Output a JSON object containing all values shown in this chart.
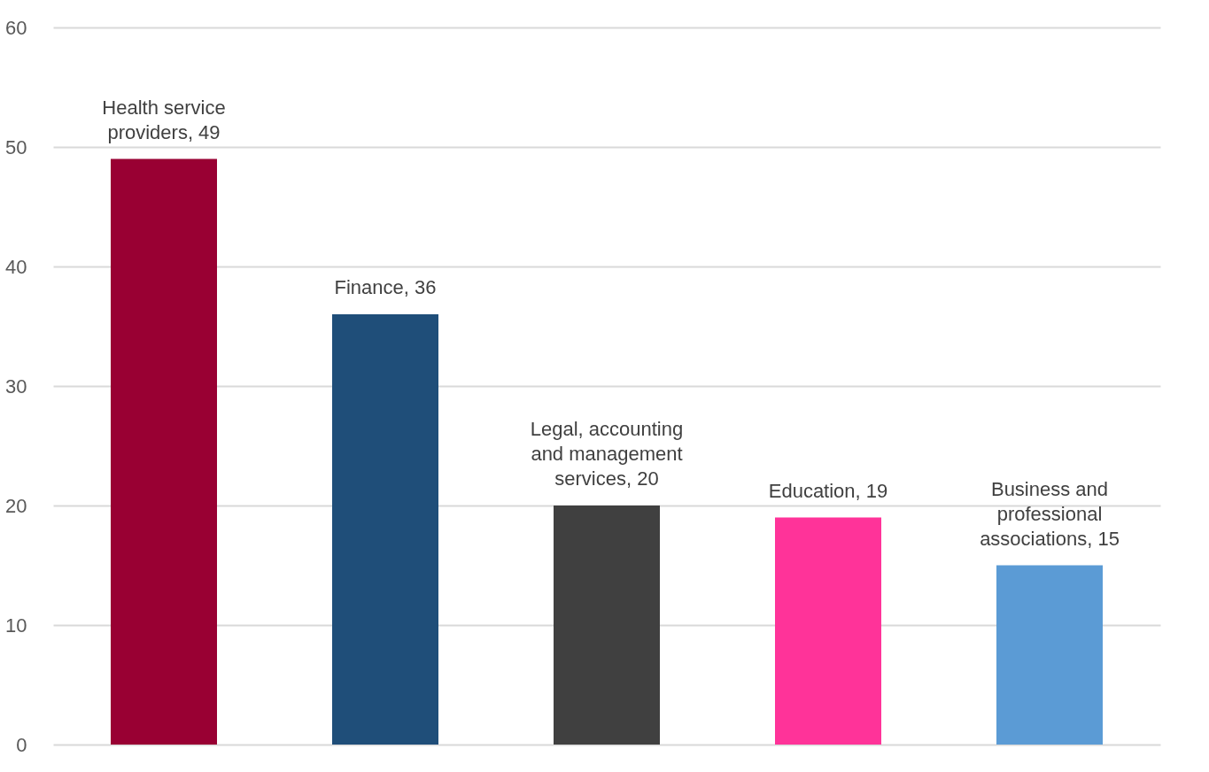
{
  "chart_data": {
    "type": "bar",
    "categories": [
      null,
      null,
      null,
      null,
      null
    ],
    "value_labels": [
      "Health service providers, 49",
      "Finance, 36",
      "Legal, accounting and management services, 20",
      "Education, 19",
      "Business and professional associations, 15"
    ],
    "values": [
      49,
      36,
      20,
      19,
      15
    ],
    "colors": [
      "#990033",
      "#1f4e79",
      "#404040",
      "#ff3399",
      "#5b9bd5"
    ],
    "ylim": [
      0,
      60
    ],
    "yticks": [
      0,
      10,
      20,
      30,
      40,
      50,
      60
    ],
    "grid": "y",
    "tick_labels": "y"
  }
}
